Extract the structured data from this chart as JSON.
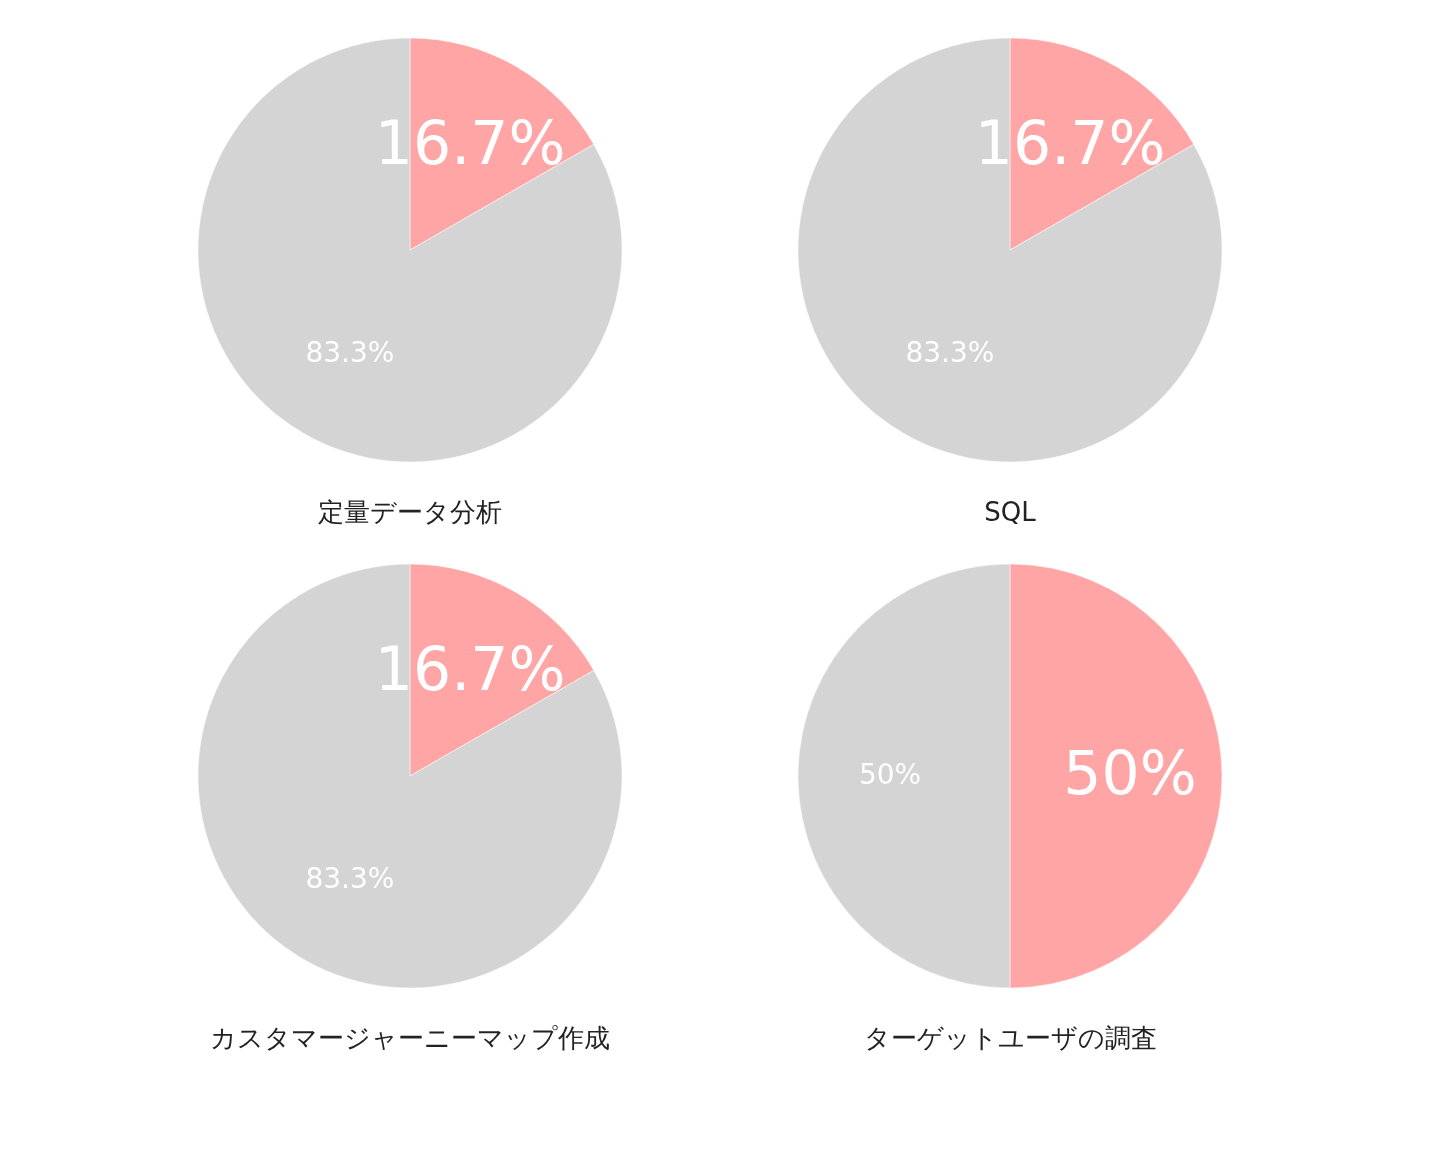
{
  "chart_data": [
    {
      "type": "pie",
      "title": "定量データ分析",
      "categories": [
        null,
        null
      ],
      "values": [
        16.7,
        83.3
      ],
      "colors": [
        "#ffa5a5",
        "#d4d4d4"
      ],
      "value_labels": [
        "16.7%",
        "83.3%"
      ],
      "legend": false
    },
    {
      "type": "pie",
      "title": "SQL",
      "categories": [
        null,
        null
      ],
      "values": [
        16.7,
        83.3
      ],
      "colors": [
        "#ffa5a5",
        "#d4d4d4"
      ],
      "value_labels": [
        "16.7%",
        "83.3%"
      ],
      "legend": false
    },
    {
      "type": "pie",
      "title": "カスタマージャーニーマップ作成",
      "categories": [
        null,
        null
      ],
      "values": [
        16.7,
        83.3
      ],
      "colors": [
        "#ffa5a5",
        "#d4d4d4"
      ],
      "value_labels": [
        "16.7%",
        "83.3%"
      ],
      "legend": false
    },
    {
      "type": "pie",
      "title": "ターゲットユーザの調査",
      "categories": [
        null,
        null
      ],
      "values": [
        50,
        50
      ],
      "colors": [
        "#ffa5a5",
        "#d4d4d4"
      ],
      "value_labels": [
        "50%",
        "50%"
      ],
      "legend": false
    }
  ]
}
